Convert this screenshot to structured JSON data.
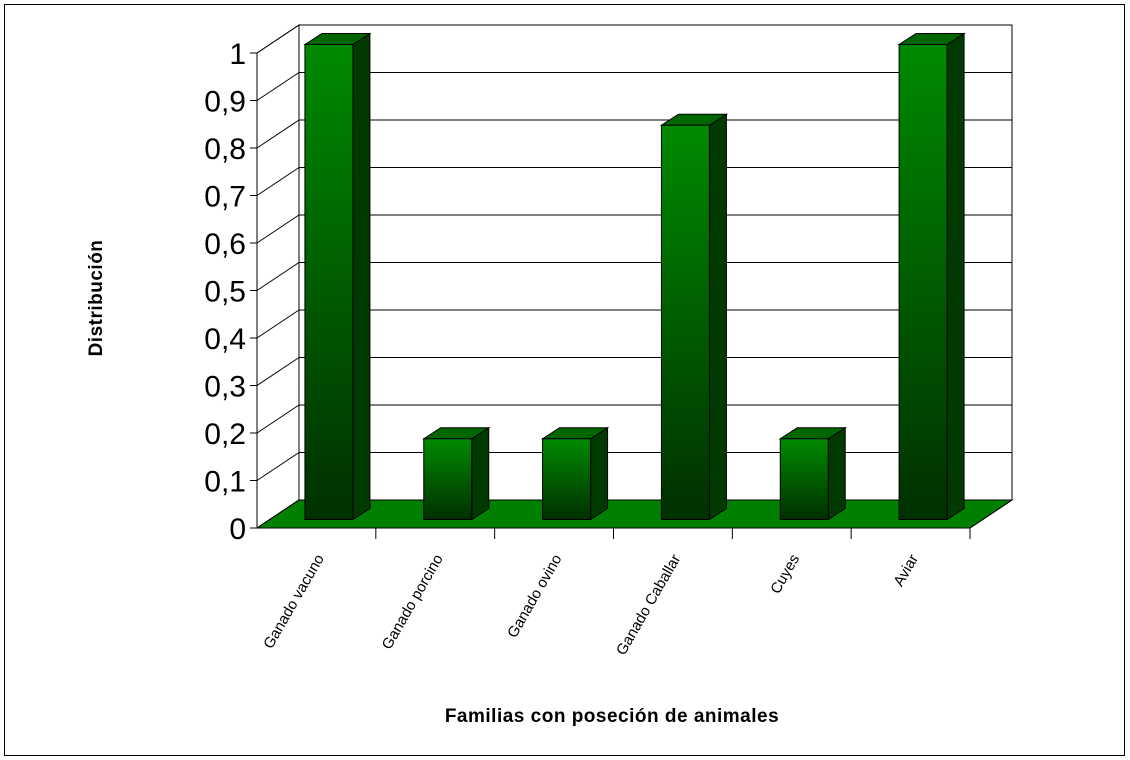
{
  "chart_data": {
    "type": "bar",
    "categories": [
      "Ganado vacuno",
      "Ganado porcino",
      "Ganado ovino",
      "Ganado Caballar",
      "Cuyes",
      "Aviar"
    ],
    "values": [
      1.0,
      0.17,
      0.17,
      0.83,
      0.17,
      1.0
    ],
    "y_ticks": [
      "0",
      "0,1",
      "0,2",
      "0,3",
      "0,4",
      "0,5",
      "0,6",
      "0,7",
      "0,8",
      "0,9",
      "1"
    ],
    "ylim": [
      0,
      1
    ],
    "xlabel": "Familias con poseción de animales",
    "ylabel": "Distribución",
    "grid": true,
    "three_d": true,
    "colors": {
      "bar_front": "#008000",
      "bar_front_dark": "#003300",
      "bar_top": "#006600",
      "bar_side": "#003a00",
      "floor": "#008000",
      "outline": "#000000"
    }
  }
}
